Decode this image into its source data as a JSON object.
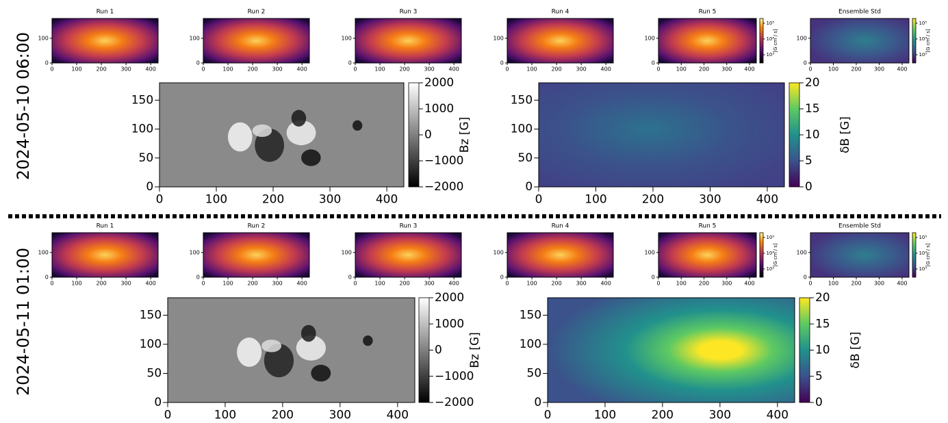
{
  "small_titles": [
    "Run 1",
    "Run 2",
    "Run 3",
    "Run 4",
    "Run 5",
    "Ensemble Std"
  ],
  "small_axes": {
    "xlim": [
      0,
      430
    ],
    "ylim": [
      0,
      180
    ],
    "xticks": [
      0,
      100,
      200,
      300,
      400
    ],
    "yticks": [
      0,
      100
    ]
  },
  "small_colorbar": {
    "label": "[G cm / s]",
    "scale": "log",
    "lim": [
      300,
      200000
    ],
    "ticks": [
      {
        "value": 1000,
        "label": "10³"
      },
      {
        "value": 10000,
        "label": "10⁴"
      },
      {
        "value": 100000,
        "label": "10⁵"
      }
    ]
  },
  "bz": {
    "xlim": [
      0,
      430
    ],
    "ylim": [
      0,
      180
    ],
    "xticks": [
      0,
      100,
      200,
      300,
      400
    ],
    "yticks": [
      0,
      50,
      100,
      150
    ],
    "colorbar": {
      "label": "Bz [G]",
      "lim": [
        -2000,
        2000
      ],
      "ticks": [
        {
          "value": -2000,
          "label": "−2000"
        },
        {
          "value": -1000,
          "label": "−1000"
        },
        0,
        1000,
        2000
      ]
    }
  },
  "db": {
    "xlim": [
      0,
      430
    ],
    "ylim": [
      0,
      180
    ],
    "xticks": [
      0,
      100,
      200,
      300,
      400
    ],
    "yticks": [
      0,
      50,
      100,
      150
    ],
    "colorbar": {
      "label": "δB [G]",
      "lim": [
        0,
        20
      ],
      "ticks": [
        0,
        5,
        10,
        15,
        20
      ]
    }
  },
  "rows": [
    {
      "date": "2024-05-10 06:00"
    },
    {
      "date": "2024-05-11 01:00"
    }
  ]
}
